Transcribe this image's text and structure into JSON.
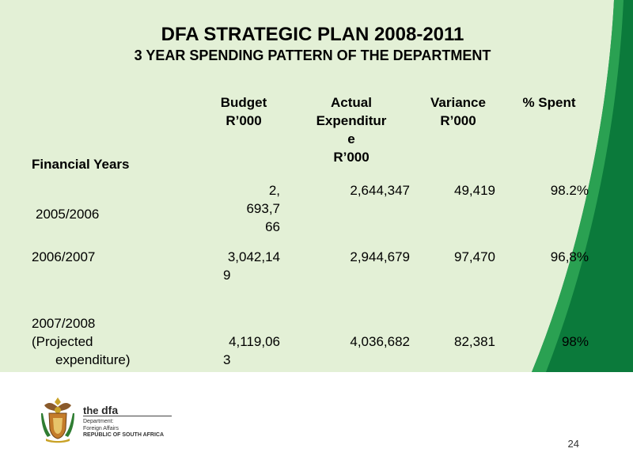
{
  "slide": {
    "title": "DFA STRATEGIC PLAN 2008-2011",
    "subtitle": "3 YEAR SPENDING PATTERN OF THE DEPARTMENT"
  },
  "table": {
    "headers": {
      "year": "Financial Years",
      "budget": [
        "Budget",
        "R’000"
      ],
      "actual": [
        "Actual",
        "Expenditur",
        "e",
        "R’000"
      ],
      "variance": [
        "Variance",
        "R’000"
      ],
      "spent": [
        "% Spent"
      ]
    },
    "rows": [
      {
        "year": [
          "2005/2006"
        ],
        "budget": [
          "2,",
          "693,7",
          "66"
        ],
        "actual": "2,644,347",
        "variance": "49,419",
        "spent": "98.2%"
      },
      {
        "year": [
          "2006/2007"
        ],
        "budget": [
          "3,042,14",
          "9"
        ],
        "actual": "2,944,679",
        "variance": "97,470",
        "spent": "96,8%"
      },
      {
        "year": [
          "2007/2008",
          "(Projected",
          "expenditure)"
        ],
        "budget": [
          "4,119,06",
          "3"
        ],
        "actual": "4,036,682",
        "variance": "82,381",
        "spent": "98%"
      }
    ]
  },
  "footer": {
    "brand_prefix": "the ",
    "brand_name": "dfa",
    "dept_lines": [
      "Department:",
      "Foreign Affairs"
    ],
    "country": "REPUBLIC OF SOUTH AFRICA",
    "page_number": "24"
  },
  "colors": {
    "panel": "#e3f0d6",
    "green_dark": "#0b7a3b",
    "green_light": "#2aa152"
  }
}
